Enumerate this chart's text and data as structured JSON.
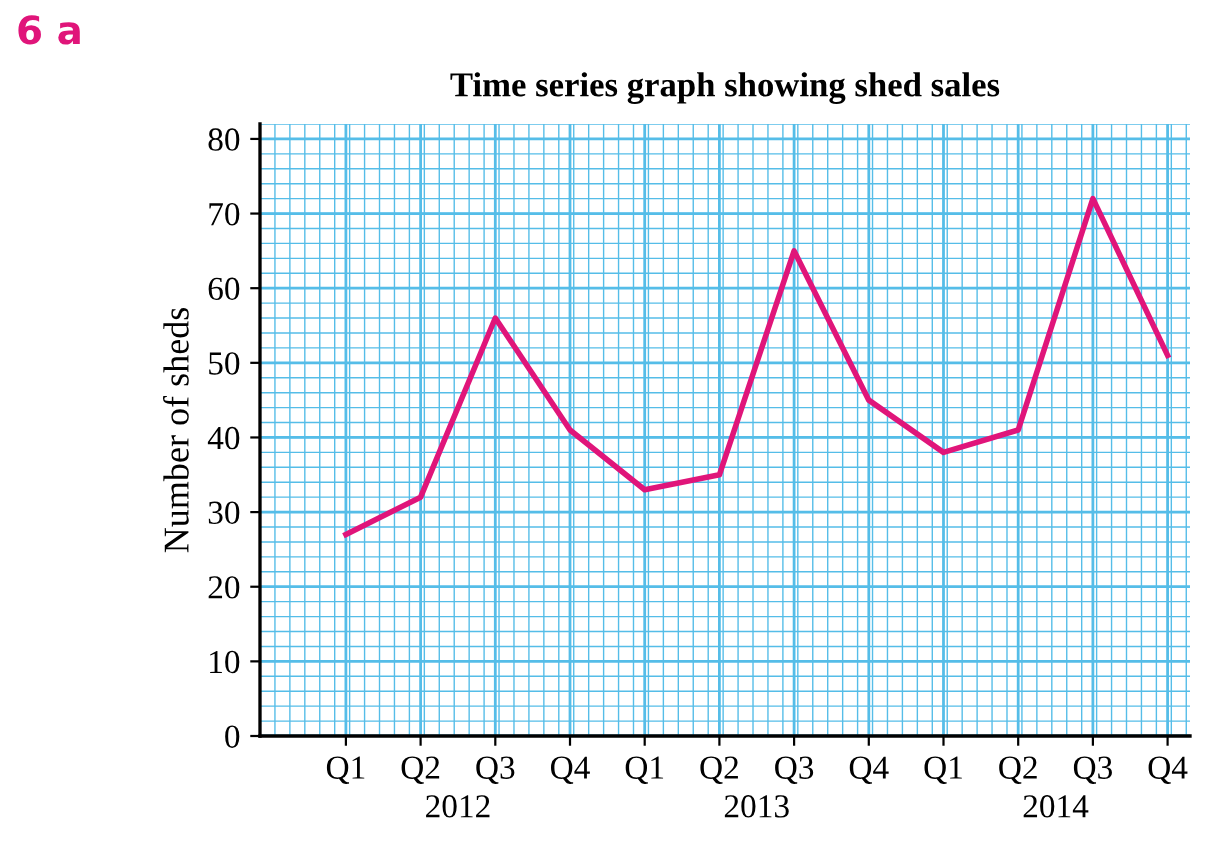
{
  "chart_data": {
    "type": "line",
    "title": "Time series graph showing shed sales",
    "ylabel": "Number of sheds",
    "categories": [
      "Q1",
      "Q2",
      "Q3",
      "Q4",
      "Q1",
      "Q2",
      "Q3",
      "Q4",
      "Q1",
      "Q2",
      "Q3",
      "Q4"
    ],
    "series": [
      {
        "color": "#e0157a",
        "values": [
          27,
          32,
          56,
          41,
          33,
          35,
          65,
          45,
          38,
          41,
          72,
          51
        ]
      }
    ],
    "ylim": [
      0,
      82
    ],
    "yticks": [
      0,
      10,
      20,
      30,
      40,
      50,
      60,
      70,
      80
    ],
    "grid": true,
    "marker": "none",
    "line_style": "solid",
    "annotations": [
      "6 a",
      "2012",
      "2013",
      "2014"
    ]
  }
}
